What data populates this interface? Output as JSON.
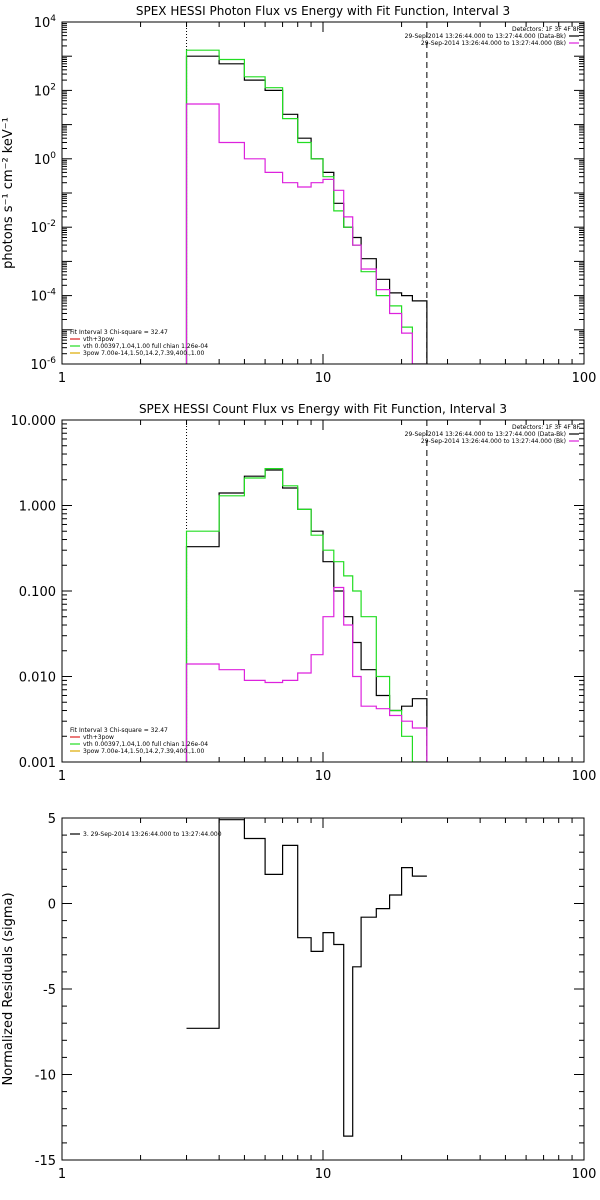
{
  "colors": {
    "data": "#000000",
    "total": "#22dd22",
    "bk": "#dd22dd",
    "thermal": "#dd2222",
    "pow": "#ddaa00"
  },
  "chart_data": [
    {
      "type": "line",
      "title": "SPEX HESSI Photon Flux vs Energy with Fit Function, Interval 3",
      "xlabel": "",
      "ylabel": "photons s⁻¹ cm⁻² keV⁻¹",
      "xscale": "log",
      "yscale": "log",
      "xlim": [
        1,
        100
      ],
      "ylim": [
        1e-06,
        10000
      ],
      "xticks": [
        1,
        10,
        100
      ],
      "xticklabels": [
        "1",
        "10",
        "100"
      ],
      "yticks": [
        10000,
        100,
        1,
        0.01,
        0.0001,
        1e-06
      ],
      "yticklabels": [
        {
          "base": "10",
          "exp": "4"
        },
        {
          "base": "10",
          "exp": "2"
        },
        {
          "base": "10",
          "exp": "0"
        },
        {
          "base": "10",
          "exp": "-2"
        },
        {
          "base": "10",
          "exp": "-4"
        },
        {
          "base": "10",
          "exp": "-6"
        }
      ],
      "vlines": [
        {
          "x": 3,
          "style": "dotted"
        },
        {
          "x": 25,
          "style": "dashed"
        }
      ],
      "bin_edges": [
        3,
        4,
        5,
        6,
        7,
        8,
        9,
        10,
        11,
        12,
        13,
        14,
        16,
        18,
        20,
        22,
        25
      ],
      "series": [
        {
          "color_key": "data",
          "values": [
            1000,
            600,
            200,
            100,
            20,
            4,
            1,
            0.4,
            0.05,
            0.01,
            0.005,
            0.0012,
            0.0003,
            0.00012,
            0.0001,
            7e-05
          ]
        },
        {
          "color_key": "total",
          "values": [
            1500,
            800,
            250,
            120,
            15,
            3,
            1,
            0.3,
            0.03,
            0.01,
            0.003,
            0.0005,
            0.0001,
            5e-05,
            1.2e-05,
            1e-06
          ]
        },
        {
          "color_key": "bk",
          "values": [
            40,
            3,
            1,
            0.4,
            0.2,
            0.15,
            0.2,
            0.25,
            0.12,
            0.02,
            0.003,
            0.0006,
            0.00015,
            3e-05,
            8e-06,
            1e-06
          ]
        }
      ],
      "legend_right": {
        "heading": "Detectors: 1F 3F 4F 8F",
        "items": [
          {
            "text": "29-Sep-2014 13:26:44.000 to 13:27:44.000 (Data-Bk)",
            "color_key": "data"
          },
          {
            "text": "29-Sep-2014 13:26:44.000 to 13:27:44.000 (Bk)",
            "color_key": "bk"
          }
        ]
      },
      "legend_left": {
        "heading": "Fit Interval 3    Chi-square = 32.47",
        "items": [
          {
            "text": "vth+3pow",
            "color_key": "thermal"
          },
          {
            "text": "vth 0.00397,1.04,1.00  full chian 1.26e-04",
            "color_key": "total"
          },
          {
            "text": "3pow 7.00e-14,1.50,14.2,7.39,400.,1.00",
            "color_key": "pow"
          }
        ]
      }
    },
    {
      "type": "line",
      "title": "SPEX HESSI Count Flux vs Energy with Fit Function, Interval 3",
      "xlabel": "",
      "ylabel": "",
      "xscale": "log",
      "yscale": "log",
      "xlim": [
        1,
        100
      ],
      "ylim": [
        0.001,
        10
      ],
      "xticks": [
        1,
        10,
        100
      ],
      "xticklabels": [
        "1",
        "10",
        "100"
      ],
      "yticks": [
        10,
        1,
        0.1,
        0.01,
        0.001
      ],
      "yticklabels": [
        "10.000",
        "1.000",
        "0.100",
        "0.010",
        "0.001"
      ],
      "vlines": [
        {
          "x": 3,
          "style": "dotted"
        },
        {
          "x": 25,
          "style": "dashed"
        }
      ],
      "bin_edges": [
        3,
        4,
        5,
        6,
        7,
        8,
        9,
        10,
        11,
        12,
        13,
        14,
        16,
        18,
        20,
        22,
        25
      ],
      "series": [
        {
          "color_key": "data",
          "values": [
            0.33,
            1.4,
            2.2,
            2.6,
            1.6,
            0.9,
            0.5,
            0.22,
            0.1,
            0.05,
            0.025,
            0.012,
            0.006,
            0.004,
            0.0045,
            0.0055
          ]
        },
        {
          "color_key": "total",
          "values": [
            0.5,
            1.3,
            2.1,
            2.7,
            1.7,
            0.9,
            0.45,
            0.3,
            0.22,
            0.15,
            0.1,
            0.05,
            0.01,
            0.004,
            0.002,
            0.001
          ]
        },
        {
          "color_key": "bk",
          "values": [
            0.014,
            0.012,
            0.009,
            0.0085,
            0.009,
            0.011,
            0.018,
            0.05,
            0.11,
            0.04,
            0.01,
            0.0045,
            0.0042,
            0.0035,
            0.003,
            0.0025
          ]
        }
      ],
      "legend_right": {
        "heading": "Detectors: 1F 3F 4F 8F",
        "items": [
          {
            "text": "29-Sep-2014 13:26:44.000 to 13:27:44.000 (Data-Bk)",
            "color_key": "data"
          },
          {
            "text": "29-Sep-2014 13:26:44.000 to 13:27:44.000 (Bk)",
            "color_key": "bk"
          }
        ]
      },
      "legend_left": {
        "heading": "Fit Interval 3    Chi-square = 32.47",
        "items": [
          {
            "text": "vth+3pow",
            "color_key": "thermal"
          },
          {
            "text": "vth 0.00397,1.04,1.00  full chian 1.26e-04",
            "color_key": "total"
          },
          {
            "text": "3pow 7.00e-14,1.50,14.2,7.39,400.,1.00",
            "color_key": "pow"
          }
        ]
      }
    },
    {
      "type": "line",
      "title": "",
      "xlabel": "",
      "ylabel": "Normalized Residuals (sigma)",
      "xscale": "log",
      "yscale": "linear",
      "xlim": [
        1,
        100
      ],
      "ylim": [
        -15,
        5
      ],
      "xticks": [
        1,
        10,
        100
      ],
      "xticklabels": [
        "1",
        "10",
        "100"
      ],
      "yticks": [
        5,
        0,
        -5,
        -10,
        -15
      ],
      "yticklabels": [
        "5",
        "0",
        "-5",
        "-10",
        "-15"
      ],
      "vlines": [],
      "bin_edges": [
        3,
        4,
        5,
        6,
        7,
        8,
        9,
        10,
        11,
        12,
        13,
        14,
        16,
        18,
        20,
        22,
        25
      ],
      "series": [
        {
          "color_key": "data",
          "values": [
            -7.3,
            4.9,
            3.8,
            1.7,
            3.4,
            -2.0,
            -2.8,
            -1.7,
            -2.4,
            -13.6,
            -3.7,
            -0.8,
            -0.3,
            0.5,
            2.1,
            1.6
          ]
        }
      ],
      "legend_left": {
        "heading": "",
        "items": [
          {
            "text": "3. 29-Sep-2014 13:26:44.000 to 13:27:44.000",
            "color_key": "data"
          }
        ]
      }
    }
  ]
}
